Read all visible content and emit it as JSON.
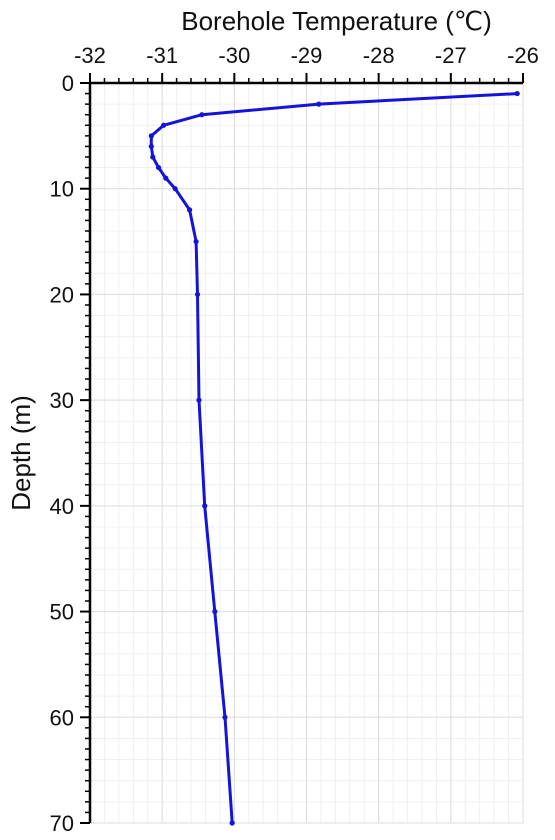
{
  "chart_data": {
    "type": "line",
    "xlabel": "Borehole Temperature (℃)",
    "ylabel": "Depth (m)",
    "x_axis_position": "top",
    "y_axis_inverted": true,
    "xlim": [
      -32,
      -26
    ],
    "ylim": [
      0,
      70
    ],
    "xticks": [
      -32,
      -31,
      -30,
      -29,
      -28,
      -27,
      -26
    ],
    "yticks": [
      0,
      10,
      20,
      30,
      40,
      50,
      60,
      70
    ],
    "xtick_labels": [
      "-32",
      "-31",
      "-30",
      "-29",
      "-28",
      "-27",
      "-26"
    ],
    "ytick_labels": [
      "0",
      "10",
      "20",
      "30",
      "40",
      "50",
      "60",
      "70"
    ],
    "grid": true,
    "series": [
      {
        "color": "#1414d8",
        "marker": "dot",
        "points": [
          {
            "x": -26.08,
            "y": 1
          },
          {
            "x": -28.83,
            "y": 2
          },
          {
            "x": -30.45,
            "y": 3
          },
          {
            "x": -30.98,
            "y": 4
          },
          {
            "x": -31.15,
            "y": 5
          },
          {
            "x": -31.15,
            "y": 6
          },
          {
            "x": -31.13,
            "y": 7
          },
          {
            "x": -31.05,
            "y": 8
          },
          {
            "x": -30.95,
            "y": 9
          },
          {
            "x": -30.82,
            "y": 10
          },
          {
            "x": -30.62,
            "y": 12
          },
          {
            "x": -30.53,
            "y": 15
          },
          {
            "x": -30.51,
            "y": 20
          },
          {
            "x": -30.49,
            "y": 30
          },
          {
            "x": -30.41,
            "y": 40
          },
          {
            "x": -30.27,
            "y": 50
          },
          {
            "x": -30.13,
            "y": 60
          },
          {
            "x": -30.03,
            "y": 70
          }
        ]
      }
    ]
  }
}
